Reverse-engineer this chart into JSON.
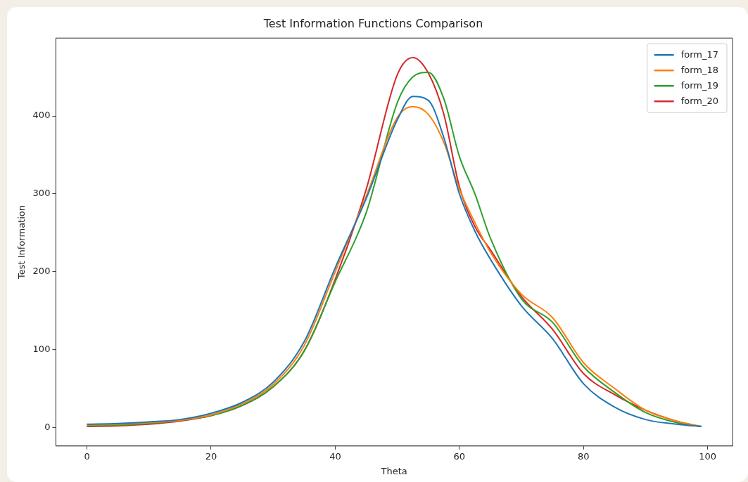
{
  "chart_data": {
    "type": "line",
    "title": "Test Information Functions Comparison",
    "xlabel": "Theta",
    "ylabel": "Test Information",
    "x": [
      0,
      5,
      10,
      15,
      20,
      25,
      30,
      35,
      40,
      45,
      50,
      52.5,
      55,
      57.5,
      60,
      62.5,
      65,
      70,
      75,
      80,
      85,
      90,
      95,
      99
    ],
    "series": [
      {
        "name": "form_17",
        "color": "#1f77b4",
        "values": [
          4,
          5,
          7,
          10,
          18,
          32,
          58,
          110,
          205,
          294,
          395,
          425,
          420,
          372,
          300,
          252,
          216,
          156,
          114,
          56,
          26,
          10,
          4,
          1
        ]
      },
      {
        "name": "form_18",
        "color": "#ff7f0e",
        "values": [
          3,
          4,
          6,
          9,
          16,
          30,
          55,
          105,
          200,
          297,
          398,
          412,
          402,
          366,
          306,
          263,
          225,
          171,
          141,
          83,
          50,
          22,
          8,
          1
        ]
      },
      {
        "name": "form_19",
        "color": "#2ca02c",
        "values": [
          2,
          3,
          5,
          9,
          15,
          28,
          52,
          98,
          187,
          276,
          417,
          450,
          456,
          422,
          348,
          300,
          243,
          165,
          135,
          78,
          45,
          19,
          6,
          1
        ]
      },
      {
        "name": "form_20",
        "color": "#d62728",
        "values": [
          1,
          2,
          4,
          8,
          15,
          28,
          52,
          98,
          190,
          306,
          453,
          475,
          455,
          402,
          309,
          258,
          228,
          168,
          126,
          69,
          42,
          22,
          8,
          1
        ]
      }
    ],
    "xlim": [
      -5,
      104
    ],
    "ylim": [
      -24,
      500
    ],
    "xticks": [
      0,
      20,
      40,
      60,
      80,
      100
    ],
    "yticks": [
      0,
      100,
      200,
      300,
      400
    ],
    "grid": false,
    "legend": "top right",
    "marker": "none",
    "line_style": "solid"
  }
}
